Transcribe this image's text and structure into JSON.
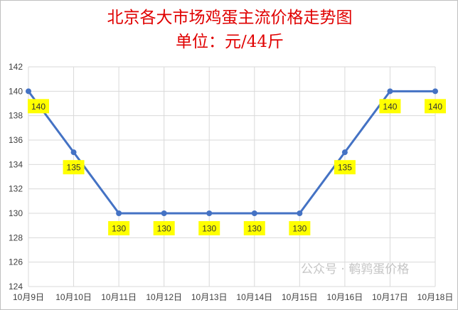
{
  "chart_data": {
    "type": "line",
    "title": "北京各大市场鸡蛋主流价格走势图",
    "subtitle": "单位：元/44斤",
    "categories": [
      "10月9日",
      "10月10日",
      "10月11日",
      "10月12日",
      "10月13日",
      "10月14日",
      "10月15日",
      "10月16日",
      "10月17日",
      "10月18日"
    ],
    "values": [
      140,
      135,
      130,
      130,
      130,
      130,
      130,
      135,
      140,
      140
    ],
    "ylim": [
      124,
      142
    ],
    "yticks": [
      124,
      126,
      128,
      130,
      132,
      134,
      136,
      138,
      140,
      142
    ],
    "grid": true,
    "data_labels": true,
    "colors": {
      "line": "#4472c4",
      "label_bg": "#ffff00",
      "title": "#e00000",
      "grid": "#d9d9d9"
    }
  },
  "watermark": "公众号 · 鹌鹑蛋价格"
}
